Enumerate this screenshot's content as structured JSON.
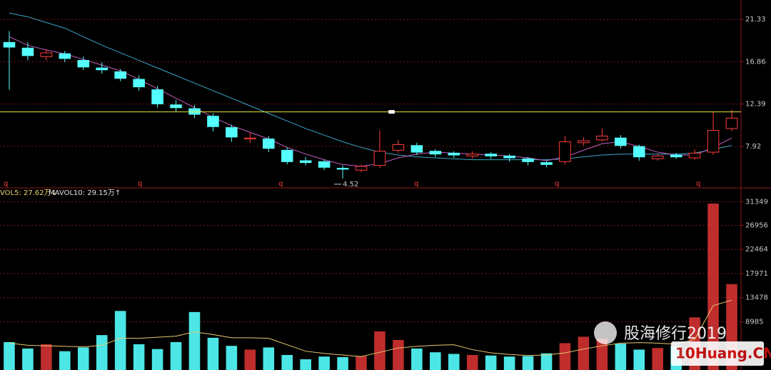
{
  "chart_data": [
    {
      "type": "candlestick",
      "ylim": [
        3.53,
        23.38
      ],
      "yticks": [
        21.33,
        16.86,
        12.39,
        7.92
      ],
      "grid": true,
      "up_color": "#ff3c3c",
      "down_color": "#54ffff",
      "open": [
        18.9,
        18.3,
        17.4,
        17.7,
        17.0,
        16.2,
        15.8,
        15.0,
        13.9,
        12.3,
        11.9,
        11.1,
        9.9,
        8.7,
        8.7,
        7.5,
        6.4,
        6.3,
        5.6,
        5.4,
        5.9,
        7.5,
        8.0,
        7.4,
        7.2,
        6.9,
        7.1,
        6.9,
        6.6,
        6.2,
        6.3,
        8.3,
        8.6,
        8.8,
        7.9,
        6.6,
        7.0,
        6.7,
        7.3,
        9.8
      ],
      "high": [
        20.1,
        18.9,
        18.2,
        18.0,
        17.4,
        16.8,
        16.1,
        15.4,
        14.3,
        12.8,
        12.3,
        11.4,
        10.2,
        9.4,
        9.0,
        7.8,
        6.8,
        6.5,
        5.9,
        6.0,
        9.6,
        8.6,
        8.3,
        7.6,
        7.4,
        7.4,
        7.3,
        7.1,
        6.8,
        6.4,
        9.0,
        8.9,
        9.8,
        9.1,
        8.1,
        7.1,
        7.2,
        7.6,
        11.6,
        11.8
      ],
      "low": [
        13.9,
        17.0,
        17.0,
        16.8,
        16.0,
        15.6,
        14.8,
        13.8,
        12.0,
        11.6,
        10.9,
        9.5,
        8.4,
        8.3,
        7.3,
        6.0,
        5.9,
        5.4,
        4.52,
        5.2,
        5.6,
        7.2,
        7.0,
        6.8,
        6.7,
        6.6,
        6.6,
        6.3,
        5.9,
        5.7,
        6.0,
        8.0,
        8.4,
        7.7,
        6.4,
        6.4,
        6.6,
        6.5,
        7.0,
        9.5
      ],
      "close": [
        18.4,
        17.5,
        17.8,
        17.2,
        16.3,
        16.0,
        15.1,
        14.2,
        12.4,
        12.0,
        11.3,
        10.0,
        8.9,
        8.8,
        7.7,
        6.3,
        6.2,
        5.7,
        5.5,
        5.8,
        7.4,
        8.1,
        7.3,
        7.1,
        7.0,
        7.1,
        6.9,
        6.7,
        6.3,
        6.0,
        8.4,
        8.5,
        9.0,
        8.0,
        6.8,
        6.9,
        6.8,
        7.2,
        9.6,
        10.9
      ],
      "ma_lines": [
        {
          "color": "#3aa6c8",
          "values": [
            22.0,
            21.6,
            21.0,
            20.4,
            19.5,
            18.6,
            17.8,
            17.0,
            16.2,
            15.4,
            14.6,
            13.8,
            13.0,
            12.2,
            11.4,
            10.6,
            9.8,
            9.1,
            8.4,
            7.8,
            7.3,
            7.0,
            6.8,
            6.7,
            6.6,
            6.5,
            6.5,
            6.5,
            6.5,
            6.5,
            6.6,
            6.8,
            7.0,
            7.1,
            7.1,
            7.1,
            7.1,
            7.2,
            7.6,
            8.0
          ]
        },
        {
          "color": "#c060c0",
          "values": [
            19.5,
            18.6,
            18.1,
            17.7,
            17.1,
            16.5,
            15.9,
            15.0,
            14.0,
            13.0,
            12.0,
            11.0,
            10.1,
            9.4,
            8.7,
            7.8,
            7.1,
            6.5,
            6.0,
            5.8,
            6.1,
            6.7,
            7.1,
            7.3,
            7.2,
            7.1,
            7.0,
            6.9,
            6.7,
            6.4,
            6.8,
            7.5,
            8.2,
            8.4,
            7.9,
            7.3,
            7.0,
            7.0,
            7.8,
            8.8
          ]
        }
      ],
      "hline": {
        "value": 11.56,
        "color": "#e6e63c"
      },
      "period_marks": [
        "q",
        "q",
        "q",
        "q",
        "q",
        "q"
      ]
    },
    {
      "type": "bar",
      "ylim": [
        0,
        33000
      ],
      "yticks": [
        31349,
        26956,
        22464,
        17971,
        13478,
        8985
      ],
      "grid": true,
      "values": [
        5200,
        4000,
        4800,
        3500,
        4200,
        6500,
        11000,
        4800,
        3900,
        5200,
        10800,
        6000,
        4500,
        3800,
        4200,
        2800,
        2000,
        2500,
        2400,
        2600,
        7200,
        5600,
        4000,
        3300,
        3000,
        2800,
        2700,
        2500,
        2600,
        3100,
        5000,
        6200,
        5800,
        4900,
        3800,
        4100,
        4500,
        9800,
        31000,
        16000
      ],
      "ma_lines": [
        {
          "color": "#e8c870",
          "values": [
            5000,
            4600,
            4500,
            4400,
            4300,
            4600,
            5900,
            5900,
            6100,
            6300,
            7100,
            6600,
            6000,
            6000,
            5900,
            4700,
            3500,
            3100,
            2800,
            2500,
            3300,
            4100,
            4400,
            4600,
            4700,
            3800,
            3200,
            2900,
            2700,
            2800,
            3200,
            3900,
            4500,
            5000,
            5100,
            5000,
            4800,
            5700,
            12000,
            13000
          ]
        }
      ],
      "legend_items": [
        "VOL5: 27.62万↓",
        "MAVOL10: 29.15万↑"
      ],
      "watermark": {
        "text": "股海修行2019",
        "logo": "10Huang.CN"
      }
    }
  ]
}
